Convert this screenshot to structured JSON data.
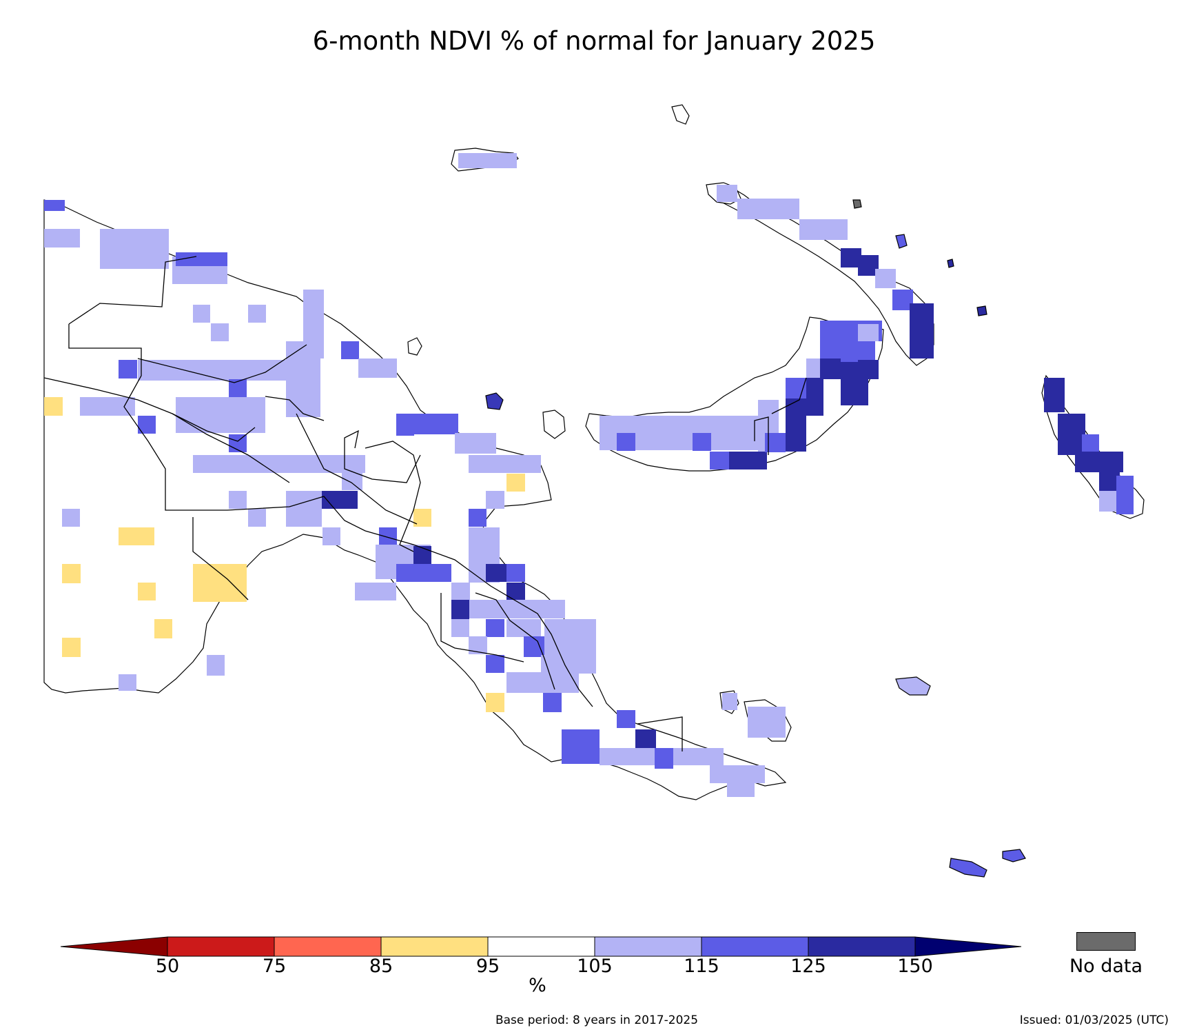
{
  "title": "6-month NDVI % of normal for January 2025",
  "legend": {
    "classes": [
      {
        "from": null,
        "to": 50,
        "color": "#8b0000"
      },
      {
        "from": 50,
        "to": 75,
        "color": "#cc1a1a"
      },
      {
        "from": 75,
        "to": 85,
        "color": "#ff6650"
      },
      {
        "from": 85,
        "to": 95,
        "color": "#ffe080"
      },
      {
        "from": 95,
        "to": 105,
        "color": "#ffffff"
      },
      {
        "from": 105,
        "to": 115,
        "color": "#b3b3f5"
      },
      {
        "from": 115,
        "to": 125,
        "color": "#5c5ce6"
      },
      {
        "from": 125,
        "to": 150,
        "color": "#2a2aa0"
      },
      {
        "from": 150,
        "to": null,
        "color": "#000070"
      }
    ],
    "ticks": [
      "50",
      "75",
      "85",
      "95",
      "105",
      "115",
      "125",
      "150"
    ],
    "units": "%",
    "nodata_label": "No data",
    "nodata_color": "#6b6b6b"
  },
  "footer": {
    "base_period": "Base period: 8 years in 2017-2025",
    "issued": "Issued: 01/03/2025 (UTC)"
  }
}
